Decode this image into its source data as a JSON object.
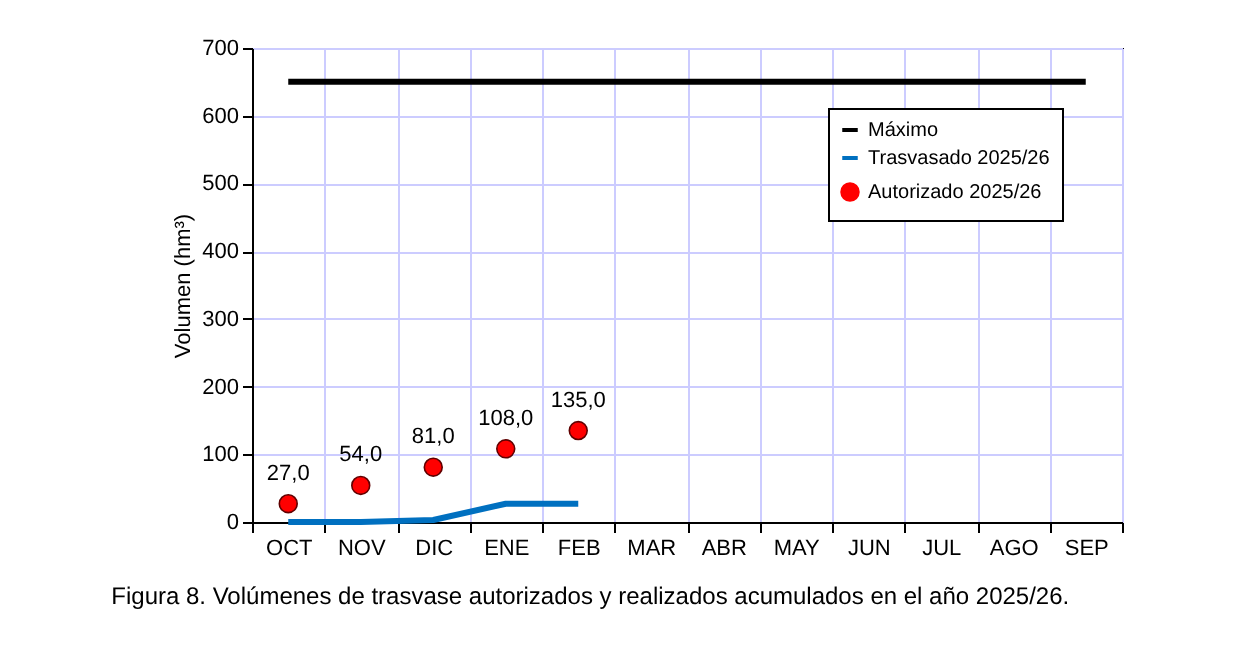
{
  "chart_data": {
    "type": "line",
    "categories": [
      "OCT",
      "NOV",
      "DIC",
      "ENE",
      "FEB",
      "MAR",
      "ABR",
      "MAY",
      "JUN",
      "JUL",
      "AGO",
      "SEP"
    ],
    "ylabel": "Volumen (hm³)",
    "ylim": [
      0,
      700
    ],
    "yticks": [
      0,
      100,
      200,
      300,
      400,
      500,
      600,
      700
    ],
    "grid": true,
    "legend": "top right",
    "line_style": "solid",
    "series": [
      {
        "name": "Máximo",
        "color": "#000000",
        "values": [
          650,
          650,
          650,
          650,
          650,
          650,
          650,
          650,
          650,
          650,
          650,
          650
        ]
      },
      {
        "name": "Trasvasado 2025/26",
        "color": "#0070c0",
        "values": [
          0,
          0,
          3,
          27,
          27,
          null,
          null,
          null,
          null,
          null,
          null,
          null
        ]
      },
      {
        "name": "Autorizado 2025/26",
        "type": "scatter",
        "marker": "circle",
        "color": "#ff0000",
        "values": [
          27,
          54,
          81,
          108,
          135,
          null,
          null,
          null,
          null,
          null,
          null,
          null
        ],
        "value_labels": [
          "27,0",
          "54,0",
          "81,0",
          "108,0",
          "135,0",
          null,
          null,
          null,
          null,
          null,
          null,
          null
        ]
      }
    ],
    "annotations": [
      "Figura 8. Volúmenes de trasvase autorizados y realizados acumulados en el año 2025/26."
    ]
  }
}
